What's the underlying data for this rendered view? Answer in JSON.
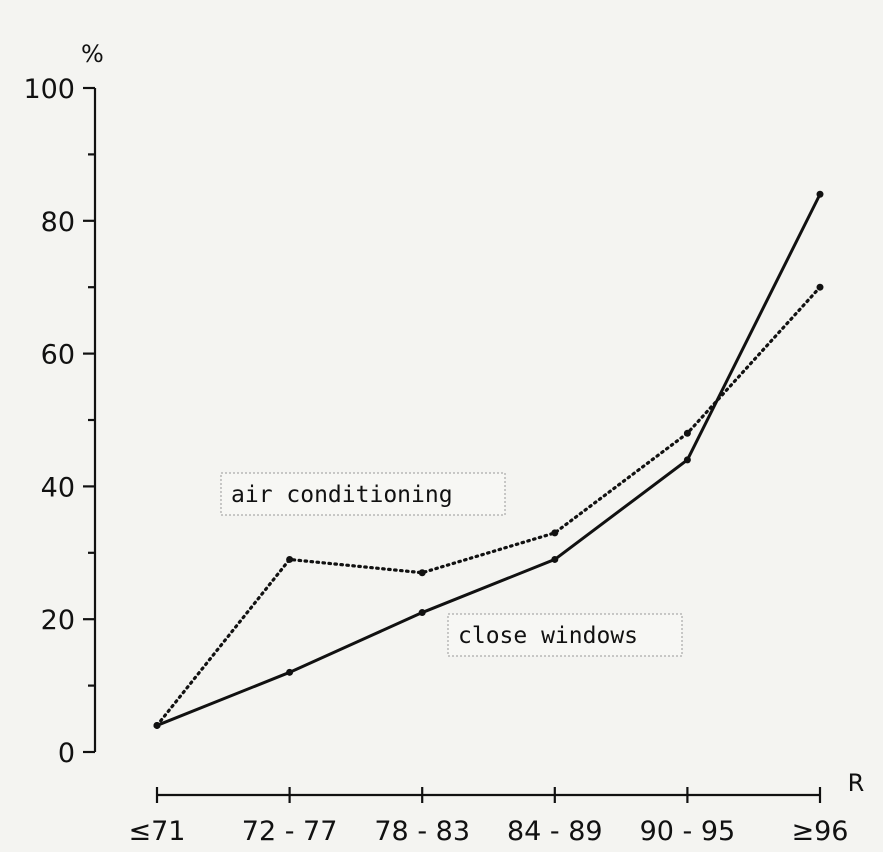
{
  "chart_data": {
    "type": "line",
    "ylabel": "%",
    "xlabel": "R",
    "ylim": [
      0,
      100
    ],
    "y_ticks": [
      "0",
      "20",
      "40",
      "60",
      "80",
      "100"
    ],
    "categories": [
      "≤71",
      "72 - 77",
      "78 - 83",
      "84 - 89",
      "90 - 95",
      "≥96"
    ],
    "series": [
      {
        "name": "close windows",
        "style": "solid",
        "values": [
          4,
          12,
          21,
          29,
          44,
          84
        ]
      },
      {
        "name": "air conditioning",
        "style": "dotted",
        "values": [
          4,
          29,
          27,
          33,
          48,
          70
        ]
      }
    ],
    "annotations": [
      "air conditioning",
      "close windows"
    ],
    "grid": false,
    "colors": {
      "line": "#111111",
      "background": "#f4f4f1"
    }
  }
}
